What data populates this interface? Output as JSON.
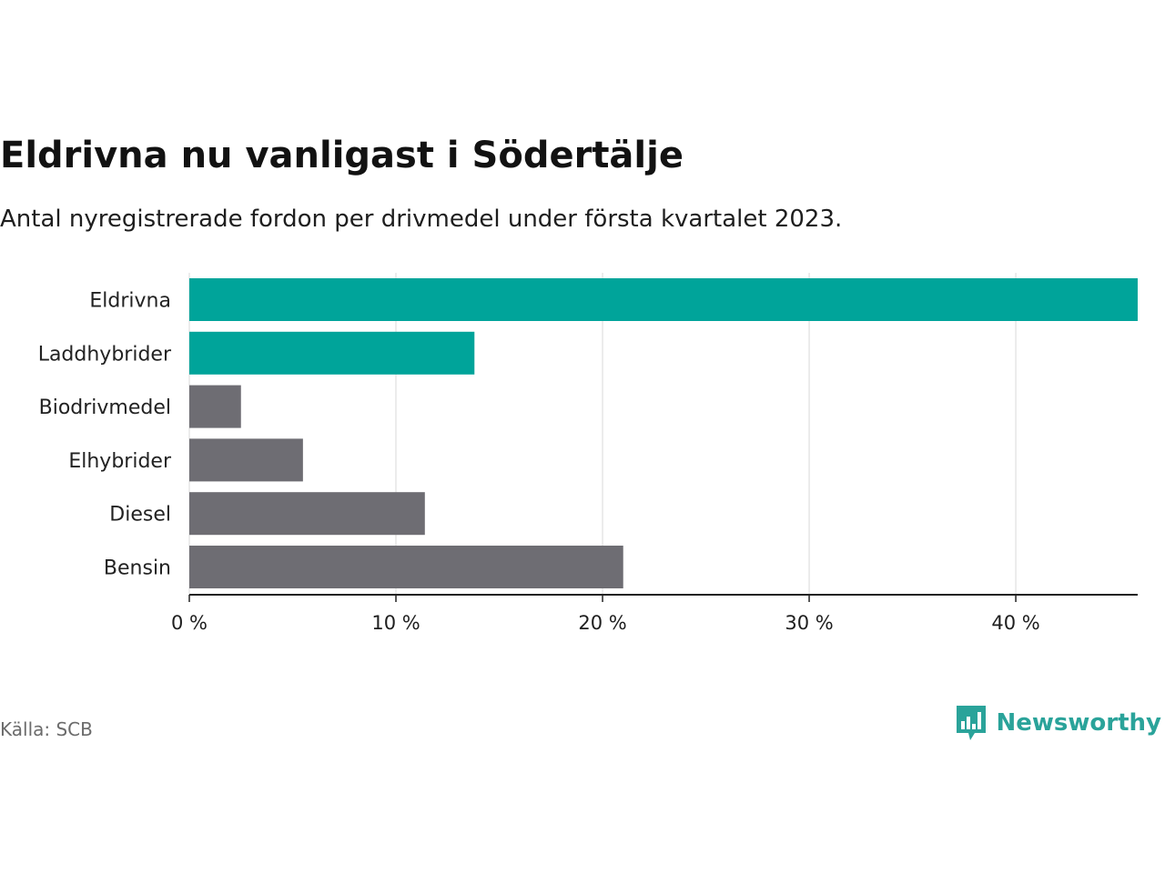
{
  "header": {
    "title": "Eldrivna nu vanligast i Södertälje",
    "subtitle": "Antal nyregistrerade fordon per drivmedel under första kvartalet 2023."
  },
  "footer": {
    "source": "Källa: SCB",
    "brand": "Newsworthy",
    "brand_icon": "bar-chart-icon"
  },
  "colors": {
    "highlight": "#00a49a",
    "default": "#6e6d73",
    "grid": "#d9d9d9",
    "axis": "#222222",
    "brand": "#2aa39a"
  },
  "chart_data": {
    "type": "bar",
    "orientation": "horizontal",
    "title": "Eldrivna nu vanligast i Södertälje",
    "subtitle": "Antal nyregistrerade fordon per drivmedel under första kvartalet 2023.",
    "xlabel": "",
    "ylabel": "",
    "unit": "%",
    "categories": [
      "Eldrivna",
      "Laddhybrider",
      "Biodrivmedel",
      "Elhybrider",
      "Diesel",
      "Bensin"
    ],
    "values": [
      45.9,
      13.8,
      2.5,
      5.5,
      11.4,
      21.0
    ],
    "highlighted": [
      true,
      true,
      false,
      false,
      false,
      false
    ],
    "xlim": [
      0,
      45.9
    ],
    "xticks": [
      0,
      10,
      20,
      30,
      40
    ],
    "xtick_labels": [
      "0 %",
      "10 %",
      "20 %",
      "30 %",
      "40 %"
    ],
    "grid": true
  }
}
